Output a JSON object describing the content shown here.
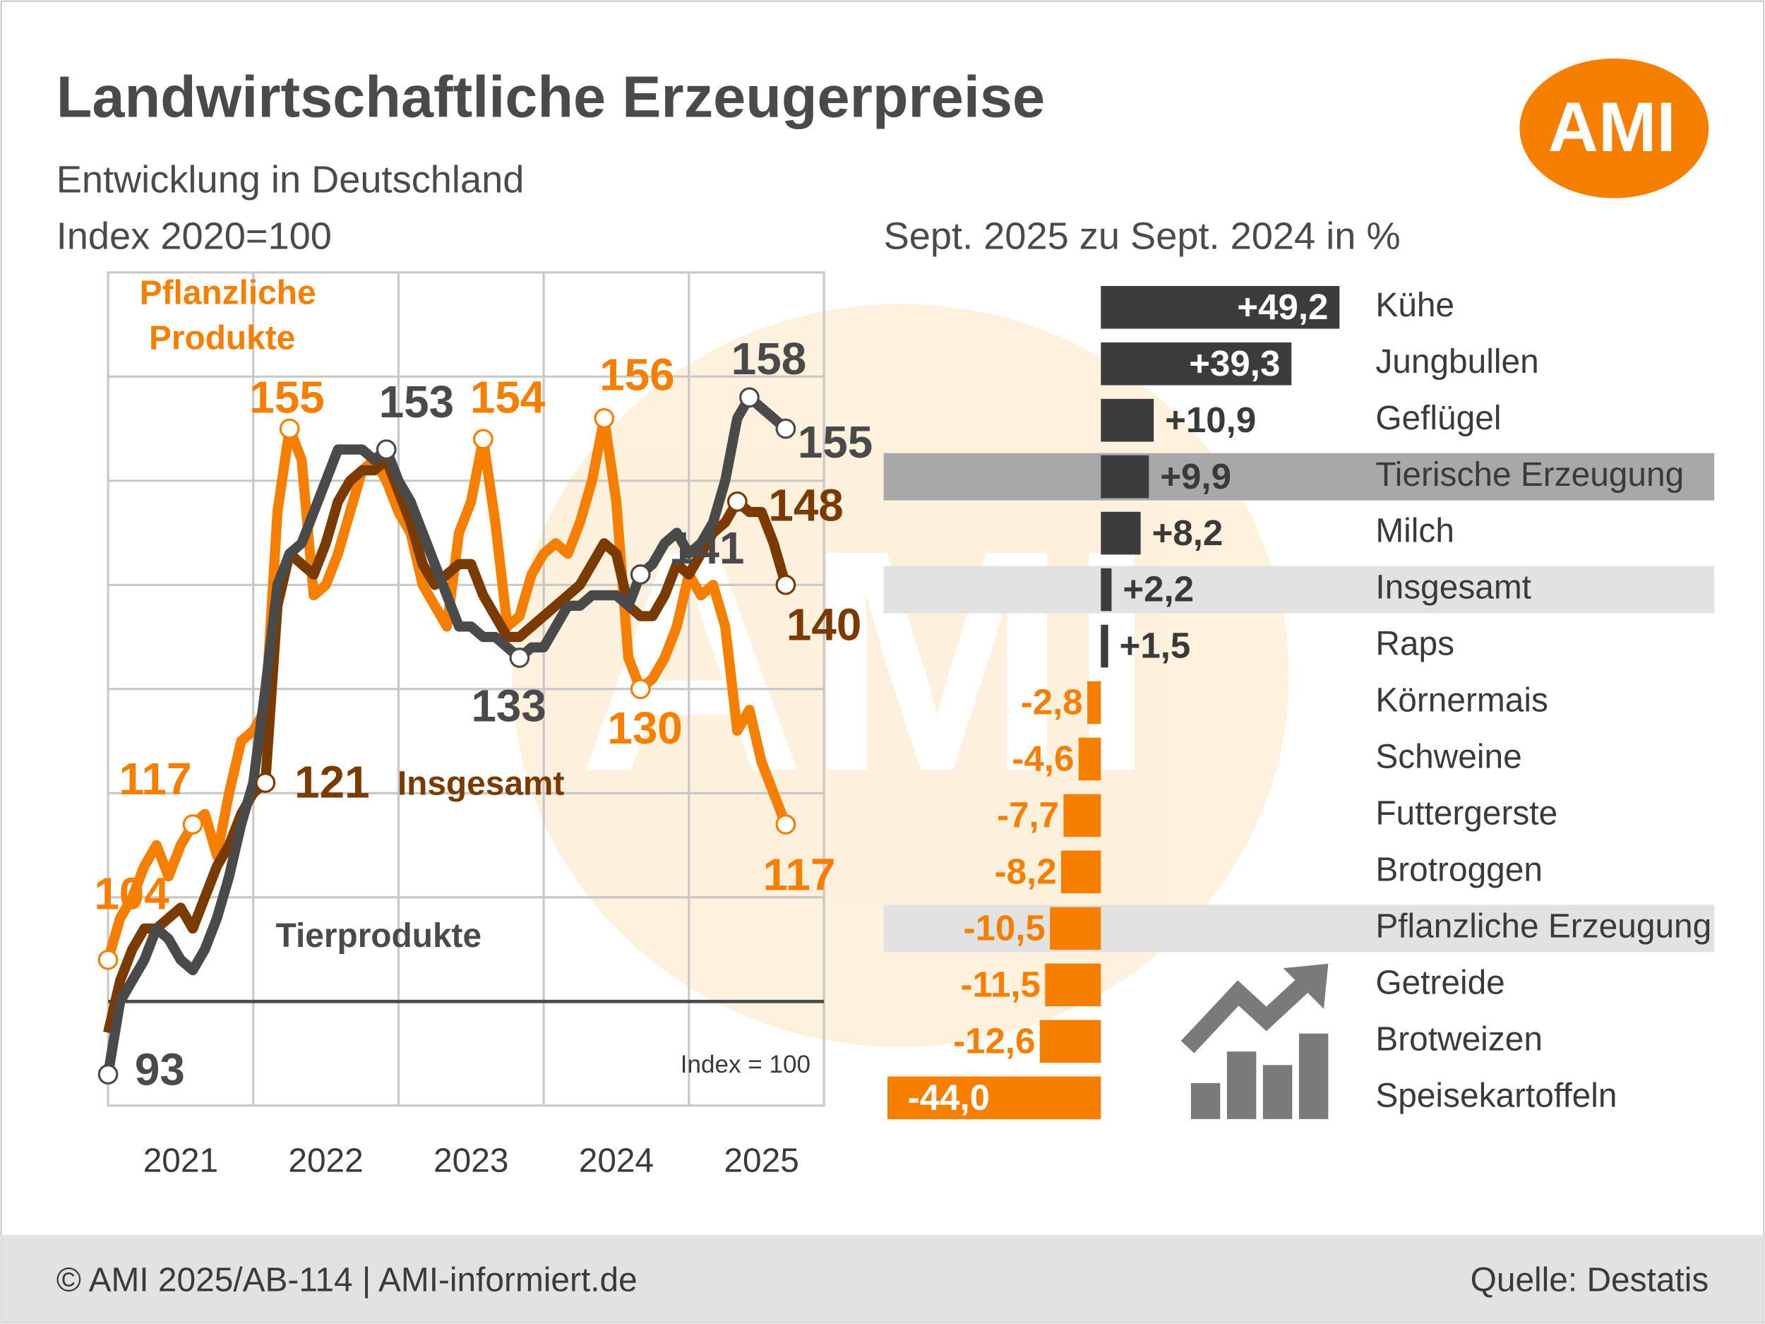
{
  "header": {
    "title": "Landwirtschaftliche Erzeugerpreise",
    "subtitle": "Entwicklung in Deutschland",
    "logo": "AMI"
  },
  "footer": {
    "left": "© AMI 2025/AB-114 | AMI-informiert.de",
    "right": "Quelle: Destatis"
  },
  "chart_data": [
    {
      "type": "line",
      "subtitle": "Index 2020=100",
      "x_labels": [
        "2021",
        "2022",
        "2023",
        "2024",
        "2025"
      ],
      "ylim": [
        90,
        170
      ],
      "yticks": [
        110,
        120,
        130,
        140,
        150,
        160
      ],
      "grid": true,
      "reference_line": {
        "value": 100,
        "label": "Index = 100"
      },
      "series": [
        {
          "name": "Pflanzliche Produkte",
          "color": "#f77f00",
          "values": [
            104,
            108,
            110,
            113,
            115,
            112,
            115,
            117,
            118,
            114,
            120,
            125,
            126,
            128,
            147,
            155,
            152,
            139,
            140,
            143,
            147,
            151,
            152,
            150,
            147,
            145,
            140,
            138,
            136,
            145,
            148,
            154,
            146,
            136,
            137,
            141,
            143,
            144,
            143,
            146,
            150,
            156,
            148,
            133,
            130,
            131,
            133,
            136,
            141,
            139,
            140,
            136,
            126,
            128,
            123,
            120,
            117
          ],
          "value_labels": [
            "104",
            null,
            null,
            null,
            null,
            null,
            null,
            "117",
            null,
            null,
            null,
            null,
            null,
            null,
            null,
            "155",
            null,
            null,
            null,
            null,
            null,
            null,
            null,
            null,
            null,
            null,
            null,
            null,
            null,
            null,
            null,
            "154",
            null,
            null,
            null,
            null,
            null,
            null,
            null,
            null,
            null,
            "156",
            null,
            null,
            "130",
            null,
            null,
            null,
            null,
            null,
            null,
            null,
            null,
            null,
            null,
            null,
            "117"
          ]
        },
        {
          "name": "Insgesamt",
          "color": "#7a3a00",
          "values": [
            97,
            102,
            105,
            107,
            107,
            108,
            109,
            107,
            110,
            113,
            115,
            118,
            120,
            121,
            138,
            143,
            142,
            141,
            144,
            148,
            150,
            151,
            151,
            152,
            149,
            146,
            142,
            140,
            141,
            142,
            142,
            139,
            137,
            135,
            135,
            136,
            137,
            138,
            139,
            140,
            142,
            144,
            143,
            138,
            137,
            137,
            139,
            142,
            141,
            143,
            145,
            146,
            148,
            147,
            147,
            144,
            140
          ],
          "value_labels": [
            null,
            null,
            null,
            null,
            null,
            null,
            null,
            null,
            null,
            null,
            null,
            null,
            null,
            "121",
            null,
            null,
            null,
            null,
            null,
            null,
            null,
            null,
            null,
            null,
            null,
            null,
            null,
            null,
            null,
            null,
            null,
            null,
            null,
            null,
            null,
            null,
            null,
            null,
            null,
            null,
            null,
            null,
            null,
            null,
            null,
            null,
            null,
            null,
            null,
            null,
            null,
            null,
            "148",
            null,
            null,
            null,
            "140"
          ]
        },
        {
          "name": "Tierprodukte",
          "color": "#4a4a4a",
          "values": [
            93,
            100,
            102,
            104,
            107,
            106,
            104,
            103,
            105,
            108,
            112,
            117,
            121,
            130,
            140,
            143,
            144,
            147,
            150,
            153,
            153,
            153,
            152,
            153,
            150,
            148,
            145,
            142,
            139,
            136,
            136,
            135,
            135,
            134,
            133,
            134,
            134,
            136,
            138,
            138,
            139,
            139,
            139,
            138,
            141,
            142,
            144,
            145,
            143,
            144,
            146,
            150,
            156,
            158,
            157,
            156,
            155
          ],
          "value_labels": [
            "93",
            null,
            null,
            null,
            null,
            null,
            null,
            null,
            null,
            null,
            null,
            null,
            null,
            null,
            null,
            null,
            null,
            null,
            null,
            null,
            null,
            null,
            null,
            "153",
            null,
            null,
            null,
            null,
            null,
            null,
            null,
            null,
            null,
            null,
            "133",
            null,
            null,
            null,
            null,
            null,
            null,
            null,
            null,
            null,
            "141",
            null,
            null,
            null,
            null,
            null,
            null,
            null,
            null,
            "158",
            null,
            null,
            "155"
          ]
        }
      ]
    },
    {
      "type": "barh",
      "title": "Sept. 2025 zu Sept. 2024 in %",
      "categories": [
        "Kühe",
        "Jungbullen",
        "Geflügel",
        "Tierische Erzeugung",
        "Milch",
        "Insgesamt",
        "Raps",
        "Körnermais",
        "Schweine",
        "Futtergerste",
        "Brotroggen",
        "Pflanzliche Erzeugung",
        "Getreide",
        "Brotweizen",
        "Speisekartoffeln"
      ],
      "values": [
        49.2,
        39.3,
        10.9,
        9.9,
        8.2,
        2.2,
        1.5,
        -2.8,
        -4.6,
        -7.7,
        -8.2,
        -10.5,
        -11.5,
        -12.6,
        -44.0
      ],
      "value_labels": [
        "+49,2",
        "+39,3",
        "+10,9",
        "+9,9",
        "+8,2",
        "+2,2",
        "+1,5",
        "-2,8",
        "-4,6",
        "-7,7",
        "-8,2",
        "-10,5",
        "-11,5",
        "-12,6",
        "-44,0"
      ],
      "colors": {
        "positive": "#3c3c3c",
        "negative": "#f77f00"
      },
      "bands": [
        {
          "index": 3,
          "color": "#a8a8a8"
        },
        {
          "index": 5,
          "color": "#e2e2e2"
        },
        {
          "index": 11,
          "color": "#e2e2e2"
        }
      ]
    }
  ]
}
